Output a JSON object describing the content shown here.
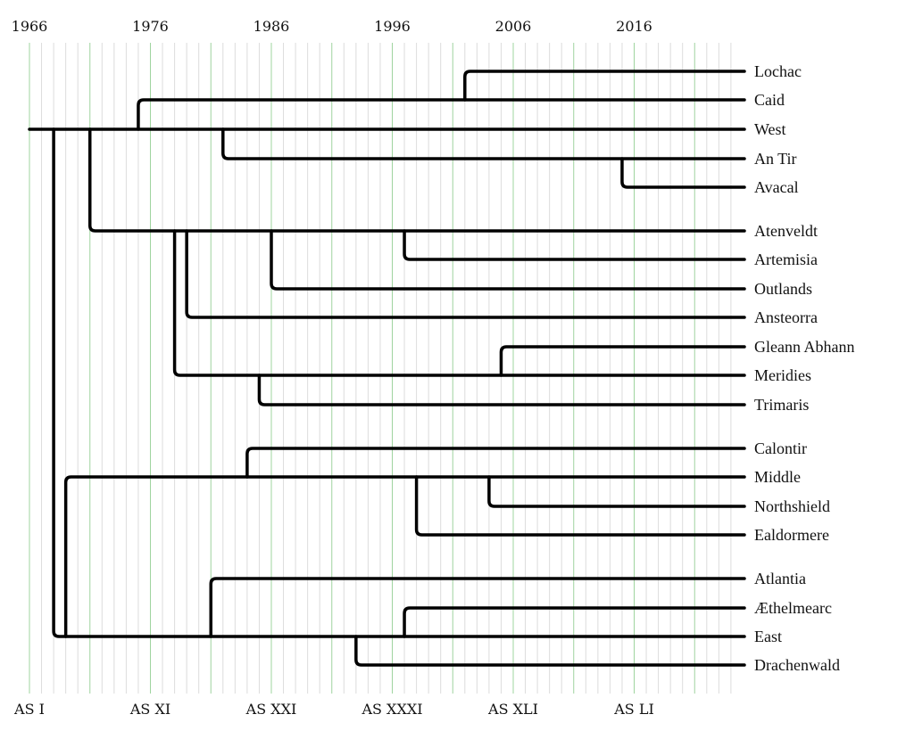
{
  "timeline": {
    "years": [
      "1966",
      "1976",
      "1986",
      "1996",
      "2006",
      "2016"
    ],
    "as_years": [
      "AS I",
      "AS XI",
      "AS XXI",
      "AS XXXI",
      "AS XLI",
      "AS LI"
    ],
    "start_year": 1966,
    "end_year": 2024
  },
  "kingdoms": [
    {
      "name": "Lochac",
      "parent": "Caid",
      "founded": 2002
    },
    {
      "name": "Caid",
      "parent": "West",
      "founded": 1975
    },
    {
      "name": "West",
      "parent": null,
      "founded": 1966
    },
    {
      "name": "An Tir",
      "parent": "West",
      "founded": 1982
    },
    {
      "name": "Avacal",
      "parent": "An Tir",
      "founded": 2015
    },
    {
      "name": "Atenveldt",
      "parent": "West",
      "founded": 1971
    },
    {
      "name": "Artemisia",
      "parent": "Atenveldt",
      "founded": 1997
    },
    {
      "name": "Outlands",
      "parent": "Atenveldt",
      "founded": 1986
    },
    {
      "name": "Ansteorra",
      "parent": "Atenveldt",
      "founded": 1979
    },
    {
      "name": "Gleann Abhann",
      "parent": "Meridies",
      "founded": 2005
    },
    {
      "name": "Meridies",
      "parent": "Atenveldt",
      "founded": 1978
    },
    {
      "name": "Trimaris",
      "parent": "Meridies",
      "founded": 1985
    },
    {
      "name": "Calontir",
      "parent": "Middle",
      "founded": 1984
    },
    {
      "name": "Middle",
      "parent": "East",
      "founded": 1969
    },
    {
      "name": "Northshield",
      "parent": "Middle",
      "founded": 2004
    },
    {
      "name": "Ealdormere",
      "parent": "Middle",
      "founded": 1998
    },
    {
      "name": "Atlantia",
      "parent": "East",
      "founded": 1981
    },
    {
      "name": "Æthelmearc",
      "parent": "East",
      "founded": 1997
    },
    {
      "name": "East",
      "parent": "West",
      "founded": 1968
    },
    {
      "name": "Drachenwald",
      "parent": "East",
      "founded": 1993
    }
  ],
  "colors": {
    "major_grid": "#9fd49f",
    "minor_grid": "#dcdcdc",
    "branch": "#000000"
  }
}
